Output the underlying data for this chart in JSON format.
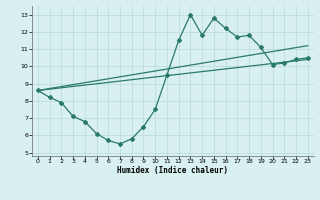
{
  "title": "",
  "xlabel": "Humidex (Indice chaleur)",
  "bg_color": "#d8f0f0",
  "grid_color": "#c0dede",
  "line_color": "#2a7a6a",
  "xlim": [
    -0.5,
    23.5
  ],
  "ylim": [
    4.8,
    13.5
  ],
  "xticks": [
    0,
    1,
    2,
    3,
    4,
    5,
    6,
    7,
    8,
    9,
    10,
    11,
    12,
    13,
    14,
    15,
    16,
    17,
    18,
    19,
    20,
    21,
    22,
    23
  ],
  "yticks": [
    5,
    6,
    7,
    8,
    9,
    10,
    11,
    12,
    13
  ],
  "line1_x": [
    0,
    1,
    2,
    3,
    4,
    5,
    6,
    7,
    8,
    9,
    10,
    11,
    12,
    13,
    14,
    15,
    16,
    17,
    18,
    19,
    20,
    21,
    22,
    23
  ],
  "line1_y": [
    8.6,
    8.2,
    7.9,
    7.1,
    6.8,
    6.1,
    5.7,
    5.5,
    5.8,
    6.5,
    7.5,
    9.5,
    11.5,
    13.0,
    11.8,
    12.8,
    12.2,
    11.7,
    11.8,
    11.1,
    10.1,
    10.2,
    10.4,
    10.5
  ],
  "line2_x": [
    0,
    23
  ],
  "line2_y": [
    8.6,
    11.2
  ],
  "line3_x": [
    0,
    23
  ],
  "line3_y": [
    8.6,
    10.4
  ]
}
